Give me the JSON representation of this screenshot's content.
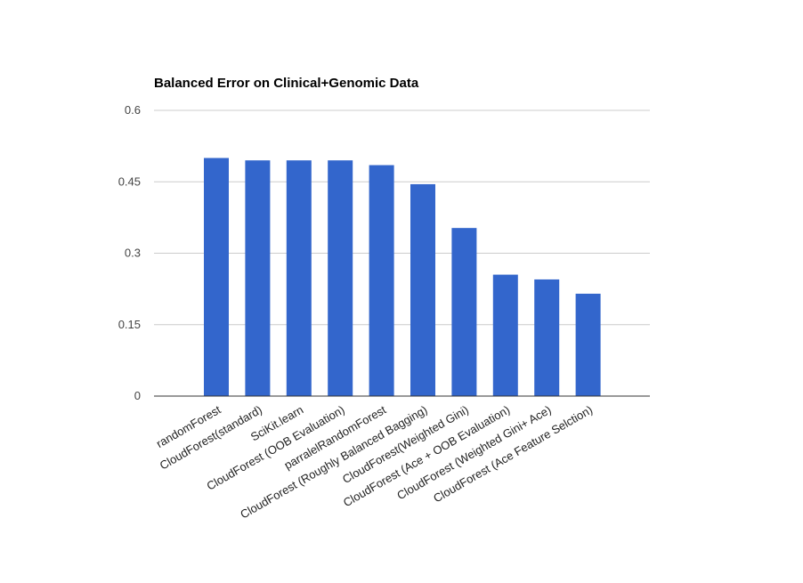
{
  "chart_data": {
    "type": "bar",
    "title": "Balanced Error on Clinical+Genomic Data",
    "xlabel": "",
    "ylabel": "",
    "ylim": [
      0,
      0.6
    ],
    "yticks": [
      "0",
      "0.15",
      "0.3",
      "0.45",
      "0.6"
    ],
    "ytick_values": [
      0,
      0.15,
      0.3,
      0.45,
      0.6
    ],
    "grid": true,
    "legend": "none",
    "bar_color": "#3366cc",
    "categories": [
      "randomForest",
      "CloudForest(standard)",
      "SciKit.learn",
      "CloudForest (OOB Evaluation)",
      "parralelRandomForest",
      "CloudForest (Roughly Balanced Bagging)",
      "CloudForest(Weighted Gini)",
      "CloudForest (Ace + OOB Evaluation)",
      "CloudForest (Weighted Gini+ Ace)",
      "CloudForest (Ace Feature Selction)"
    ],
    "values": [
      0.5,
      0.495,
      0.495,
      0.495,
      0.485,
      0.445,
      0.353,
      0.255,
      0.245,
      0.215
    ]
  }
}
